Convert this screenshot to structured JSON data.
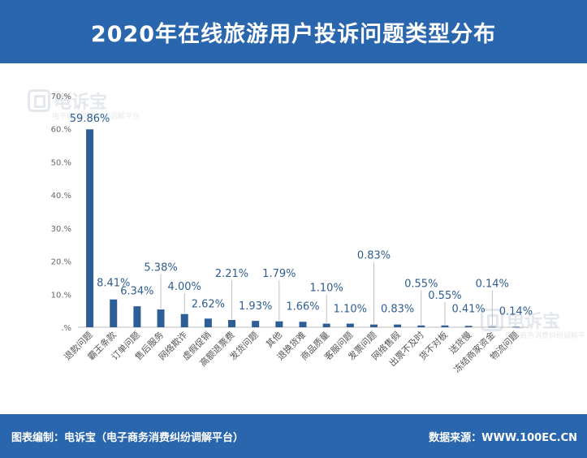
{
  "title": "2020年在线旅游用户投诉问题类型分布",
  "watermark": {
    "name": "电诉宝",
    "subtitle": "电子商务消费纠纷调解平台"
  },
  "footer": {
    "left": "图表编制：电诉宝（电子商务消费纠纷调解平台）",
    "right": "数据来源：WWW.100EC.CN"
  },
  "colors": {
    "header_bg": "#2a66ad",
    "bar": "#2e5e96",
    "label": "#2f5d8f"
  },
  "chart_data": {
    "type": "bar",
    "title": "2020年在线旅游用户投诉问题类型分布",
    "xlabel": "",
    "ylabel": "",
    "ylim": [
      0,
      70
    ],
    "yticks": [
      0,
      10,
      20,
      30,
      40,
      50,
      60,
      70
    ],
    "ytick_labels": [
      ".%",
      "10.%",
      "20.%",
      "30.%",
      "40.%",
      "50.%",
      "60.%",
      "70.%"
    ],
    "grid": false,
    "categories": [
      "退款问题",
      "霸王条款",
      "订单问题",
      "售后服务",
      "网络欺诈",
      "虚假促销",
      "高额退票费",
      "发货问题",
      "其他",
      "退换货难",
      "商品质量",
      "客服问题",
      "发票问题",
      "网络售假",
      "出票不及时",
      "货不对板",
      "送货慢",
      "冻结商家资金",
      "物流问题"
    ],
    "values": [
      59.86,
      8.41,
      6.34,
      5.38,
      4.0,
      2.62,
      2.21,
      1.93,
      1.79,
      1.66,
      1.1,
      1.1,
      0.83,
      0.83,
      0.55,
      0.55,
      0.41,
      0.14,
      0.14
    ],
    "data_labels": [
      "59.86%",
      "8.41%",
      "6.34%",
      "5.38%",
      "4.00%",
      "2.62%",
      "2.21%",
      "1.93%",
      "1.79%",
      "1.66%",
      "1.10%",
      "1.10%",
      "0.83%",
      "0.83%",
      "0.55%",
      "0.55%",
      "0.41%",
      "0.14%",
      "0.14%"
    ]
  }
}
